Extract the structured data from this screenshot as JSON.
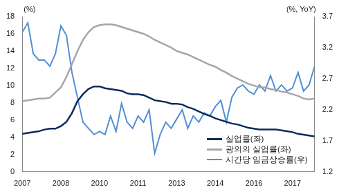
{
  "chart_data": {
    "type": "line",
    "categories": [
      "2007",
      null,
      null,
      null,
      null,
      null,
      null,
      "2008",
      null,
      null,
      null,
      null,
      null,
      null,
      "2010",
      null,
      null,
      null,
      null,
      null,
      null,
      "2011",
      null,
      null,
      null,
      null,
      null,
      null,
      "2013",
      null,
      null,
      null,
      null,
      null,
      null,
      "2014",
      null,
      null,
      null,
      null,
      null,
      null,
      "2016",
      null,
      null,
      null,
      null,
      null,
      null,
      "2017",
      null,
      null,
      null,
      null
    ],
    "series": [
      {
        "name": "실업률(좌)",
        "color": "#0b2a5b",
        "axis": "y",
        "values": [
          4.4,
          4.5,
          4.6,
          4.7,
          4.9,
          5.0,
          5.0,
          5.3,
          5.8,
          6.8,
          8.2,
          9.0,
          9.6,
          9.9,
          9.9,
          9.7,
          9.6,
          9.5,
          9.4,
          9.1,
          9.0,
          9.0,
          8.9,
          8.6,
          8.3,
          8.2,
          8.1,
          7.9,
          7.9,
          7.8,
          7.5,
          7.3,
          7.0,
          6.7,
          6.5,
          6.2,
          6.0,
          5.8,
          5.6,
          5.5,
          5.3,
          5.1,
          5.0,
          4.9,
          4.9,
          4.9,
          4.9,
          4.8,
          4.7,
          4.6,
          4.4,
          4.3,
          4.2,
          4.1
        ]
      },
      {
        "name": "광의의 실업률(좌)",
        "color": "#a6a6a6",
        "axis": "y",
        "values": [
          8.2,
          8.3,
          8.4,
          8.5,
          8.5,
          8.6,
          9.2,
          9.8,
          11.0,
          12.5,
          14.0,
          15.3,
          16.2,
          16.8,
          17.0,
          17.1,
          17.1,
          17.0,
          16.8,
          16.6,
          16.4,
          16.2,
          16.0,
          15.7,
          15.3,
          15.0,
          14.7,
          14.4,
          14.0,
          13.8,
          13.6,
          13.3,
          13.0,
          12.7,
          12.4,
          12.2,
          11.8,
          11.5,
          11.1,
          10.8,
          10.5,
          10.2,
          10.0,
          9.8,
          9.8,
          9.6,
          9.5,
          9.3,
          9.2,
          9.0,
          8.8,
          8.5,
          8.4,
          8.5
        ]
      },
      {
        "name": "시간당 임금상승률(우)",
        "color": "#4f8fd6",
        "axis": "y2",
        "values": [
          3.45,
          3.6,
          3.1,
          3.0,
          3.0,
          2.9,
          3.1,
          3.55,
          3.4,
          2.8,
          2.4,
          2.0,
          1.9,
          1.8,
          1.85,
          1.8,
          2.1,
          1.85,
          2.3,
          2.0,
          1.9,
          2.1,
          2.0,
          2.2,
          1.5,
          1.8,
          2.0,
          1.9,
          2.05,
          2.2,
          1.9,
          2.1,
          2.0,
          2.15,
          2.1,
          2.25,
          2.35,
          2.0,
          2.4,
          2.55,
          2.6,
          2.5,
          2.45,
          2.6,
          2.5,
          2.75,
          2.5,
          2.6,
          2.5,
          2.55,
          2.8,
          2.5,
          2.6,
          2.9
        ]
      }
    ],
    "y_label": "(%)",
    "y2_label": "(%, YoY)",
    "ylim": [
      0,
      18
    ],
    "yticks": [
      0,
      2,
      4,
      6,
      8,
      10,
      12,
      14,
      16,
      18
    ],
    "y2lim": [
      1.2,
      3.7
    ],
    "y2ticks": [
      1.2,
      1.7,
      2.2,
      2.7,
      3.2,
      3.7
    ],
    "grid": false,
    "legend": "lower right"
  }
}
